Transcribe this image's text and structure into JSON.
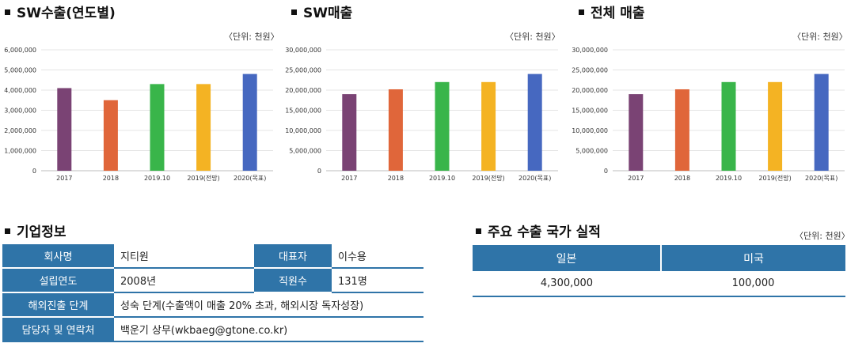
{
  "charts_section": [
    {
      "title": "SW수출(연도별)",
      "unit": "〈단위: 천원〉"
    },
    {
      "title": "SW매출",
      "unit": "〈단위: 천원〉"
    },
    {
      "title": "전체 매출",
      "unit": "〈단위: 천원〉"
    }
  ],
  "chart_data": [
    {
      "type": "bar",
      "title": "SW수출(연도별)",
      "categories": [
        "2017",
        "2018",
        "2019.10",
        "2019(전망)",
        "2020(목표)"
      ],
      "values": [
        4100000,
        3500000,
        4300000,
        4300000,
        4800000
      ],
      "colors": [
        "#7a4374",
        "#e0663a",
        "#39b54a",
        "#f4b323",
        "#4668c0"
      ],
      "ylim": [
        0,
        6000000
      ],
      "yticks": [
        "0",
        "1,000,000",
        "2,000,000",
        "3,000,000",
        "4,000,000",
        "5,000,000",
        "6,000,000"
      ],
      "grid": true
    },
    {
      "type": "bar",
      "title": "SW매출",
      "categories": [
        "2017",
        "2018",
        "2019.10",
        "2019(전망)",
        "2020(목표)"
      ],
      "values": [
        19000000,
        20200000,
        22000000,
        22000000,
        24000000
      ],
      "colors": [
        "#7a4374",
        "#e0663a",
        "#39b54a",
        "#f4b323",
        "#4668c0"
      ],
      "ylim": [
        0,
        30000000
      ],
      "yticks": [
        "0",
        "5,000,000",
        "10,000,000",
        "15,000,000",
        "20,000,000",
        "25,000,000",
        "30,000,000"
      ],
      "grid": true
    },
    {
      "type": "bar",
      "title": "전체 매출",
      "categories": [
        "2017",
        "2018",
        "2019.10",
        "2019(전망)",
        "2020(목표)"
      ],
      "values": [
        19000000,
        20200000,
        22000000,
        22000000,
        24000000
      ],
      "colors": [
        "#7a4374",
        "#e0663a",
        "#39b54a",
        "#f4b323",
        "#4668c0"
      ],
      "ylim": [
        0,
        30000000
      ],
      "yticks": [
        "0",
        "5,000,000",
        "10,000,000",
        "15,000,000",
        "20,000,000",
        "25,000,000",
        "30,000,000"
      ],
      "grid": true
    }
  ],
  "company": {
    "title": "기업정보",
    "name_label": "회사명",
    "name_value": "지티원",
    "ceo_label": "대표자",
    "ceo_value": "이수용",
    "founded_label": "설립연도",
    "founded_value": "2008년",
    "staff_label": "직원수",
    "staff_value": "131명",
    "stage_label": "해외진출 단계",
    "stage_value": "성숙 단계(수출액이 매출 20% 초과, 해외시장 독자성장)",
    "contact_label": "담당자 및 연락처",
    "contact_value": "백운기 상무(wkbaeg@gtone.co.kr)"
  },
  "export": {
    "title": "주요 수출 국가 실적",
    "unit": "〈단위: 천원〉",
    "col1": "일본",
    "col2": "미국",
    "val1": "4,300,000",
    "val2": "100,000"
  }
}
